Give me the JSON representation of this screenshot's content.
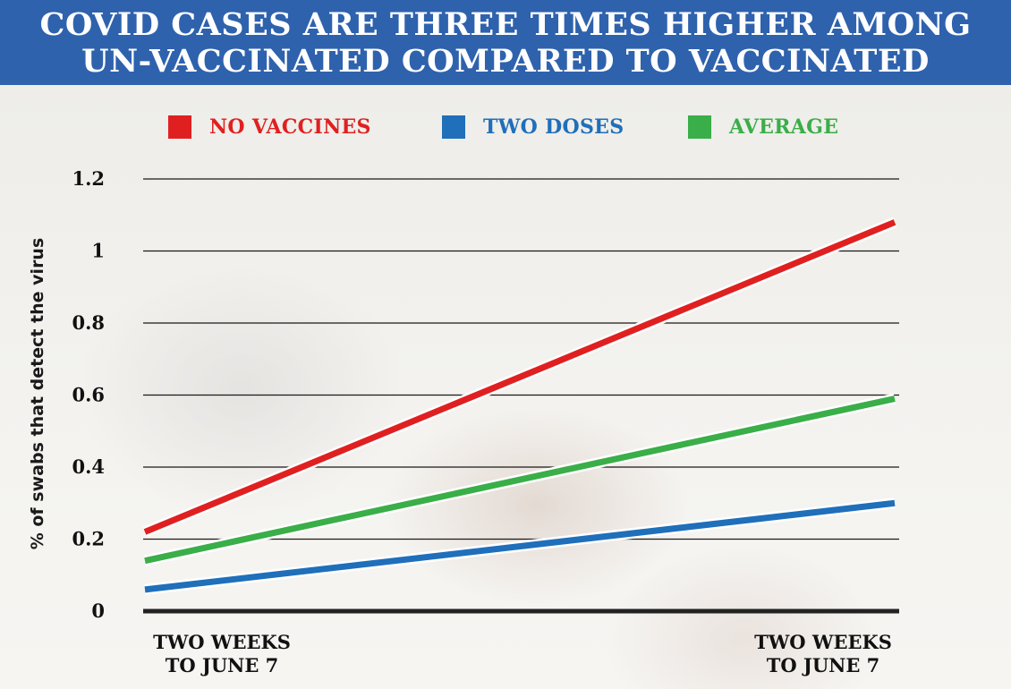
{
  "header": {
    "line1": "COVID CASES ARE THREE TIMES HIGHER AMONG",
    "line2": "UN-VACCINATED COMPARED TO VACCINATED",
    "background_color": "#2f62ad"
  },
  "chart_data": {
    "type": "line",
    "title": "COVID CASES ARE THREE TIMES HIGHER AMONG UN-VACCINATED COMPARED TO VACCINATED",
    "xlabel": "",
    "ylabel": "% of swabs that detect the virus",
    "x": [
      [
        "TWO WEEKS",
        "TO JUNE 7"
      ],
      [
        "TWO WEEKS",
        "TO JUNE 7"
      ]
    ],
    "ylim": [
      0,
      1.2
    ],
    "yticks": [
      "0",
      "0.2",
      "0.4",
      "0.6",
      "0.8",
      "1",
      "1.2"
    ],
    "ytick_values": [
      0,
      0.2,
      0.4,
      0.6,
      0.8,
      1,
      1.2
    ],
    "grid": true,
    "legend_position": "top",
    "series": [
      {
        "name": "NO VACCINES",
        "color": "#e02020",
        "values": [
          0.22,
          1.08
        ]
      },
      {
        "name": "TWO DOSES",
        "color": "#1f6fba",
        "values": [
          0.06,
          0.3
        ]
      },
      {
        "name": "AVERAGE",
        "color": "#3aae48",
        "values": [
          0.14,
          0.59
        ]
      }
    ]
  }
}
